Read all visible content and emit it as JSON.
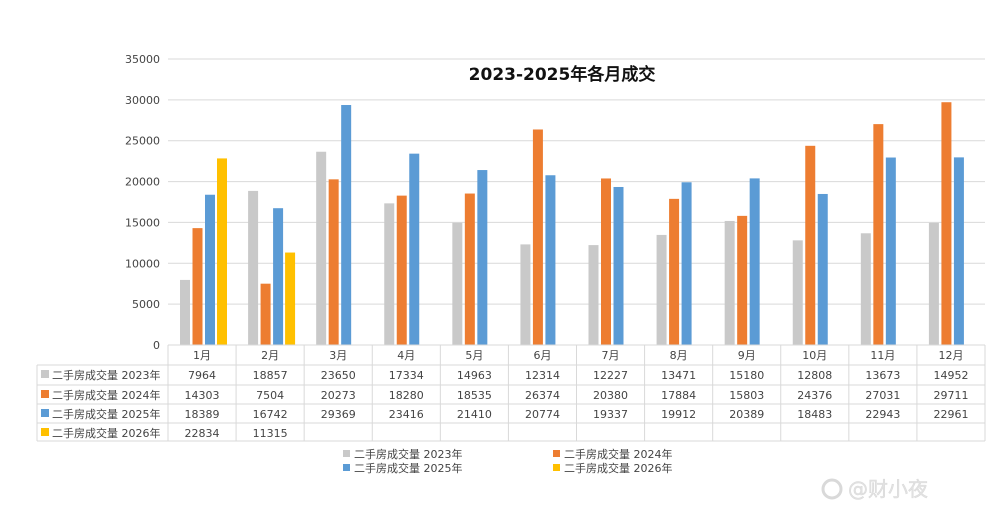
{
  "chart_data": {
    "type": "bar",
    "title": "2023-2025年各月成交",
    "categories": [
      "1月",
      "2月",
      "3月",
      "4月",
      "5月",
      "6月",
      "7月",
      "8月",
      "9月",
      "10月",
      "11月",
      "12月"
    ],
    "ylim": [
      0,
      35000
    ],
    "yticks": [
      "0",
      "5000",
      "10000",
      "15000",
      "20000",
      "25000",
      "30000",
      "35000"
    ],
    "grid": true,
    "legend_position": "bottom",
    "data_table": true,
    "series": [
      {
        "name": "二手房成交量 2023年",
        "color": "#c9c9c9",
        "values": [
          7964,
          18857,
          23650,
          17334,
          14963,
          12314,
          12227,
          13471,
          15180,
          12808,
          13673,
          14952
        ]
      },
      {
        "name": "二手房成交量 2024年",
        "color": "#ed7d31",
        "values": [
          14303,
          7504,
          20273,
          18280,
          18535,
          26374,
          20380,
          17884,
          15803,
          24376,
          27031,
          29711
        ]
      },
      {
        "name": "二手房成交量 2025年",
        "color": "#5b9bd5",
        "values": [
          18389,
          16742,
          29369,
          23416,
          21410,
          20774,
          19337,
          19912,
          20389,
          18483,
          22943,
          22961
        ]
      },
      {
        "name": "二手房成交量 2026年",
        "color": "#ffc000",
        "values": [
          22834,
          11315,
          null,
          null,
          null,
          null,
          null,
          null,
          null,
          null,
          null,
          null
        ]
      }
    ]
  },
  "watermark": "@财小夜"
}
